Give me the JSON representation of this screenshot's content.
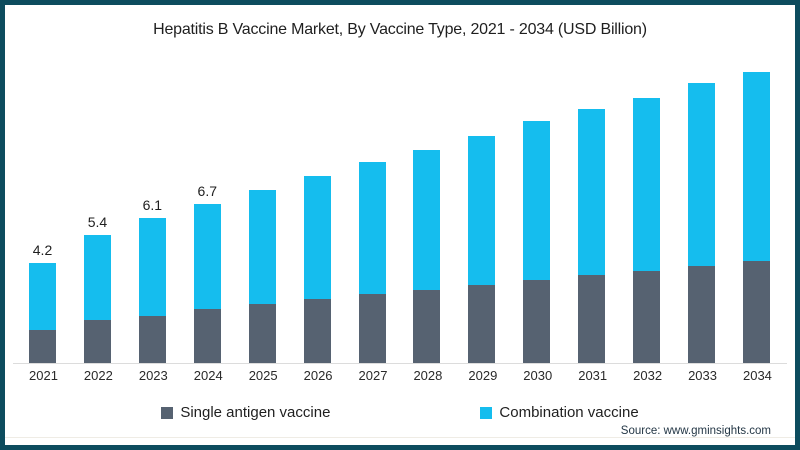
{
  "title": "Hepatitis B Vaccine Market, By Vaccine Type, 2021 - 2034 (USD Billion)",
  "source_note": "Source: www.gminsights.com",
  "colors": {
    "frame_border": "#0d4c5e",
    "single_antigen": "#566271",
    "combination": "#15bdee",
    "axis_line": "#dcdcdc",
    "text": "#1f1f1f"
  },
  "chart_data": {
    "type": "bar",
    "stacked": true,
    "title": "Hepatitis B Vaccine Market, By Vaccine Type, 2021 - 2034 (USD Billion)",
    "xlabel": "",
    "ylabel": "",
    "unit": "USD Billion",
    "categories": [
      "2021",
      "2022",
      "2023",
      "2024",
      "2025",
      "2026",
      "2027",
      "2028",
      "2029",
      "2030",
      "2031",
      "2032",
      "2033",
      "2034"
    ],
    "series": [
      {
        "name": "Single antigen vaccine",
        "color": "#566271",
        "values": [
          1.4,
          1.8,
          2.0,
          2.3,
          2.5,
          2.7,
          2.9,
          3.1,
          3.3,
          3.5,
          3.7,
          3.9,
          4.1,
          4.3
        ]
      },
      {
        "name": "Combination vaccine",
        "color": "#15bdee",
        "values": [
          2.8,
          3.6,
          4.1,
          4.4,
          4.8,
          5.2,
          5.6,
          5.9,
          6.3,
          6.7,
          7.0,
          7.3,
          7.7,
          8.0
        ]
      }
    ],
    "totals": [
      4.2,
      5.4,
      6.1,
      6.7,
      7.3,
      7.9,
      8.5,
      9.0,
      9.6,
      10.2,
      10.7,
      11.2,
      11.8,
      12.3
    ],
    "value_labels_shown": [
      "4.2",
      "5.4",
      "6.1",
      "6.7",
      "",
      "",
      "",
      "",
      "",
      "",
      "",
      "",
      "",
      ""
    ],
    "ylim": [
      0,
      13
    ],
    "grid": false,
    "y_axis_visible": false,
    "legend_position": "bottom"
  }
}
